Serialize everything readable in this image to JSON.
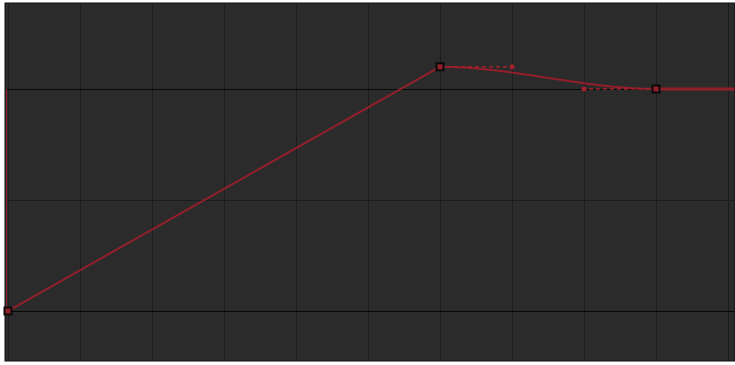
{
  "graph": {
    "colors": {
      "background": "#2b2b2b",
      "border": "#0e0e0e",
      "grid_minor": "#1c1c1c",
      "grid_major": "#070707",
      "curve": "#931f2a",
      "tangent": "#a0222e",
      "key_border": "#0a0a0a"
    },
    "time_range": [
      0,
      1
    ],
    "value_range": [
      -0.05,
      1.35
    ],
    "time_grid_step": 0.1,
    "value_grid_step": 0.5,
    "ticks_hidden": true,
    "keyframes": [
      {
        "time": 0.0,
        "value": 0.0,
        "interpolation": "linear",
        "selected": false
      },
      {
        "time": 0.6,
        "value": 1.1,
        "interpolation": "bezier",
        "selected": false,
        "out_tangent": {
          "time": 0.7,
          "value": 1.1
        }
      },
      {
        "time": 0.9,
        "value": 1.0,
        "interpolation": "bezier",
        "selected": false,
        "in_tangent": {
          "time": 0.8,
          "value": 1.0
        }
      }
    ],
    "post_extrapolation": "constant"
  }
}
